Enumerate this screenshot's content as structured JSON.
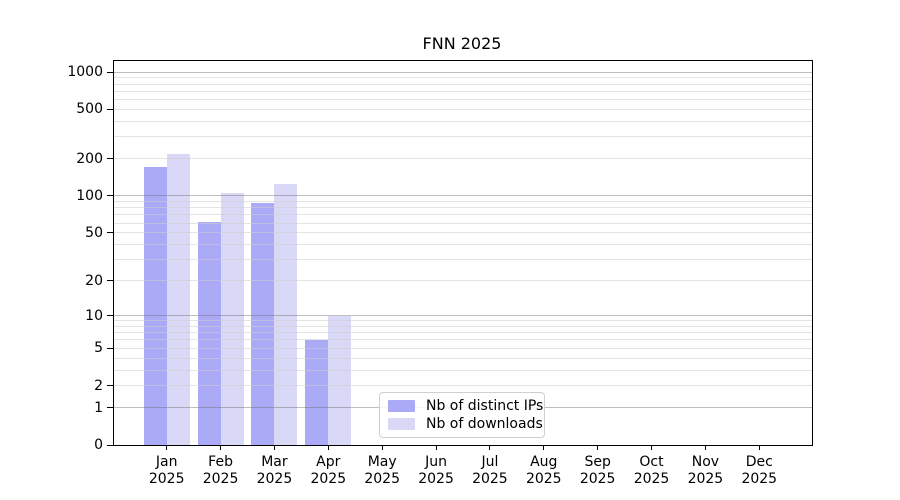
{
  "title": "FNN 2025",
  "chart_data": {
    "type": "bar",
    "title": "FNN 2025",
    "categories": [
      "Jan 2025",
      "Feb 2025",
      "Mar 2025",
      "Apr 2025",
      "May 2025",
      "Jun 2025",
      "Jul 2025",
      "Aug 2025",
      "Sep 2025",
      "Oct 2025",
      "Nov 2025",
      "Dec 2025"
    ],
    "series": [
      {
        "name": "Nb of distinct IPs",
        "color": "#aaaaf6",
        "values": [
          170,
          61,
          88,
          6,
          0,
          0,
          0,
          0,
          0,
          0,
          0,
          0
        ]
      },
      {
        "name": "Nb of downloads",
        "color": "#d9d8f7",
        "values": [
          220,
          105,
          125,
          10,
          0,
          0,
          0,
          0,
          0,
          0,
          0,
          0
        ]
      }
    ],
    "xlabel": "",
    "ylabel": "",
    "y_scale": "log1p",
    "y_axis_ticks": [
      1000,
      500,
      200,
      100,
      50,
      20,
      10,
      5,
      2,
      1,
      0
    ],
    "ylim": [
      0,
      1100
    ],
    "grid": "horizontal, major lines at 1/10/100/1000, faint minor lines at 2-9, 20-90, 200-900",
    "legend_position": "lower center-left inside plot"
  },
  "colors": {
    "series_ips": "#aaaaf6",
    "series_downloads": "#d9d8f7",
    "grid_major": "#b8b8b8",
    "grid_minor": "#e3e3e3",
    "axis": "#000000",
    "text": "#000000",
    "legend_border": "#cfcfcf",
    "background": "#ffffff"
  }
}
